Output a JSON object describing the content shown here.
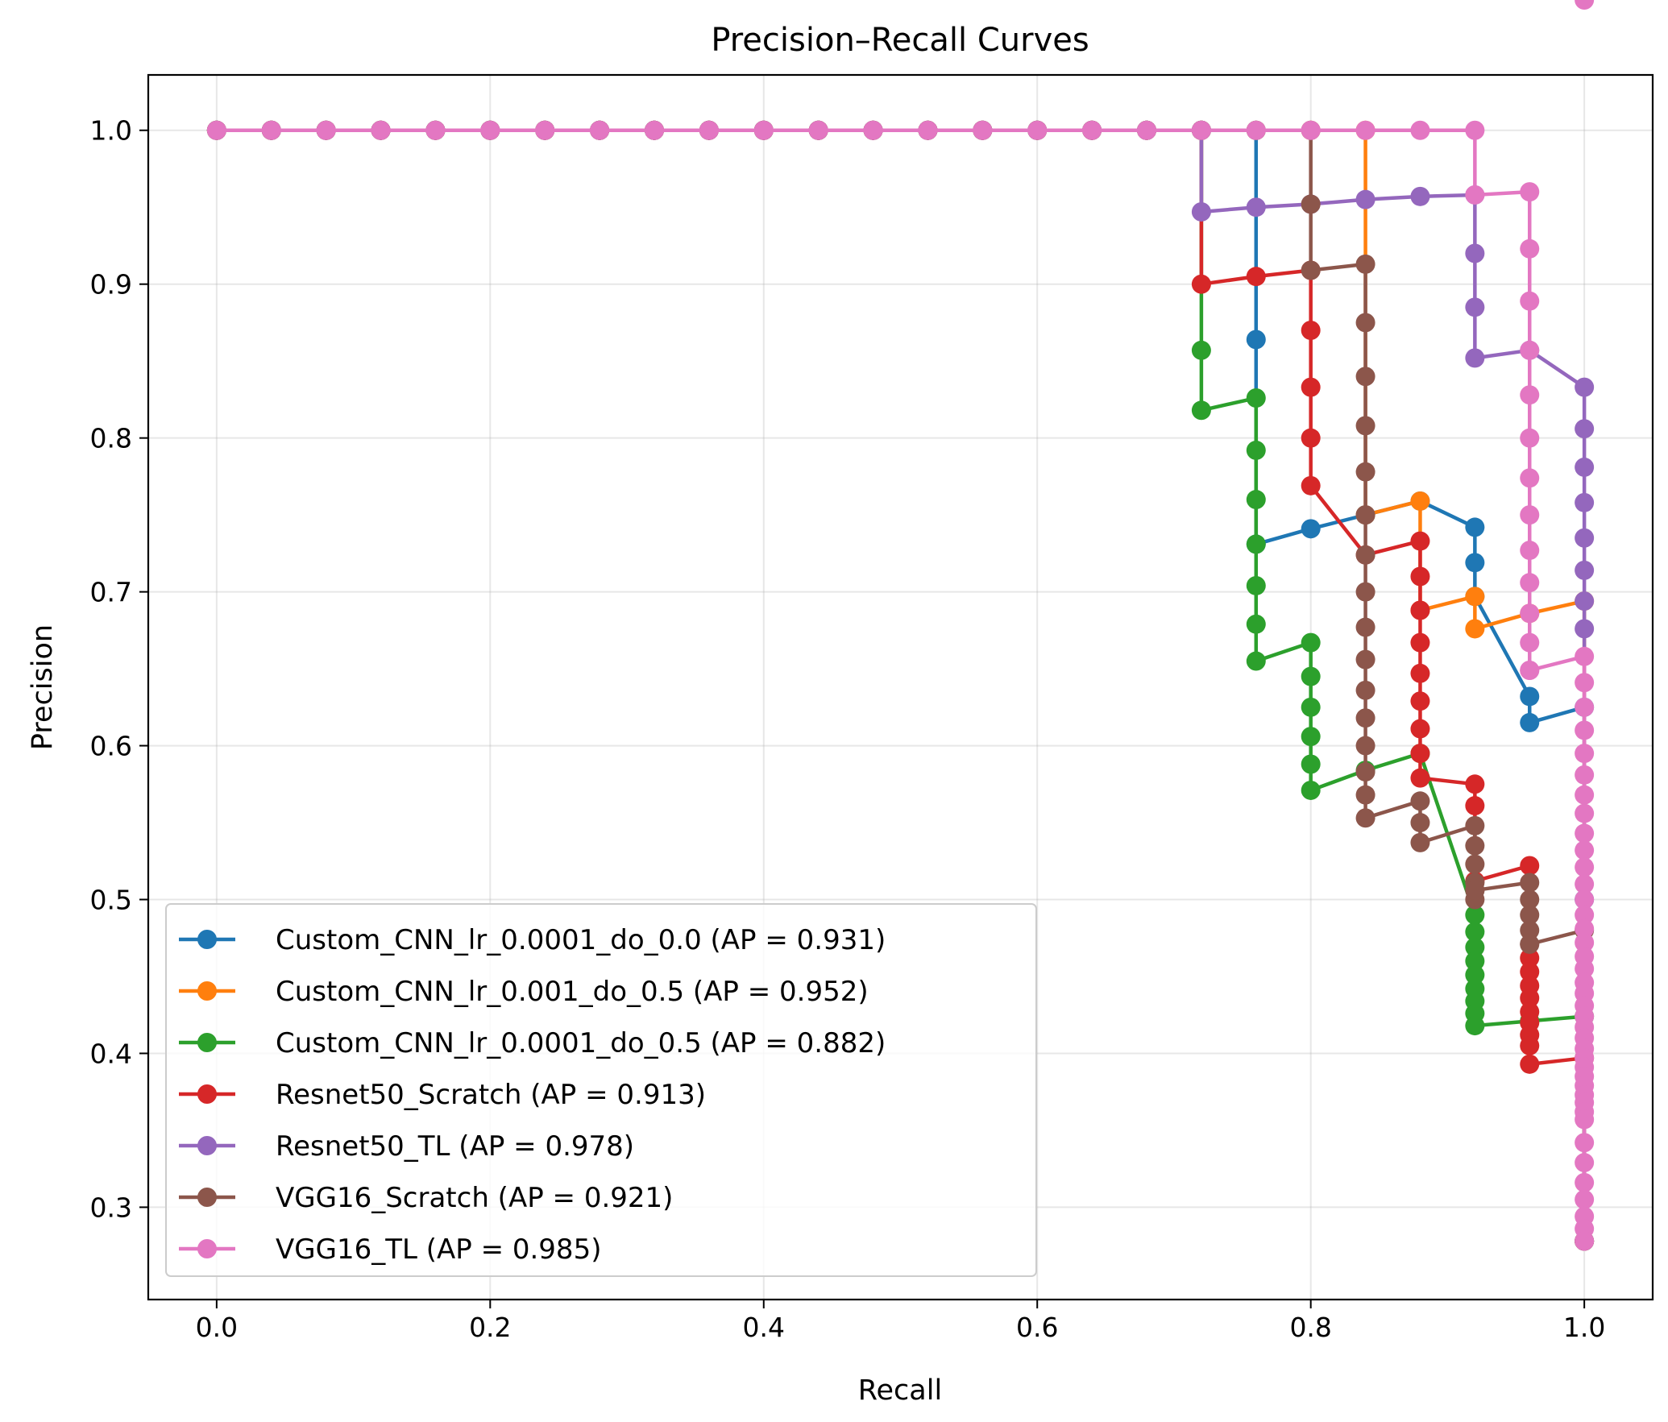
{
  "chart_data": {
    "type": "line",
    "title": "Precision–Recall Curves",
    "xlabel": "Recall",
    "ylabel": "Precision",
    "xlim": [
      -0.05,
      1.05
    ],
    "ylim": [
      0.24,
      1.036
    ],
    "xticks": [
      0.0,
      0.2,
      0.4,
      0.6,
      0.8,
      1.0
    ],
    "xtick_labels": [
      "0.0",
      "0.2",
      "0.4",
      "0.6",
      "0.8",
      "1.0"
    ],
    "yticks": [
      0.3,
      0.4,
      0.5,
      0.6,
      0.7,
      0.8,
      0.9,
      1.0
    ],
    "ytick_labels": [
      "0.3",
      "0.4",
      "0.5",
      "0.6",
      "0.7",
      "0.8",
      "0.9",
      "1.0"
    ],
    "grid": true,
    "legend_position": "lower-left",
    "series": [
      {
        "name": "Custom_CNN_lr_0.0001_do_0.0 (AP = 0.931)",
        "color": "#1f77b4",
        "recall": [
          0.0,
          0.04,
          0.08,
          0.12,
          0.16,
          0.2,
          0.24,
          0.28,
          0.32,
          0.36,
          0.4,
          0.44,
          0.48,
          0.52,
          0.56,
          0.6,
          0.64,
          0.68,
          0.72,
          0.76,
          0.76,
          0.76,
          0.8,
          0.84,
          0.88,
          0.92,
          0.92,
          0.92,
          0.96,
          0.96,
          1.0,
          1.0,
          1.0
        ],
        "precision": [
          1.0,
          1.0,
          1.0,
          1.0,
          1.0,
          1.0,
          1.0,
          1.0,
          1.0,
          1.0,
          1.0,
          1.0,
          1.0,
          1.0,
          1.0,
          1.0,
          1.0,
          1.0,
          1.0,
          1.0,
          0.864,
          0.731,
          0.741,
          0.75,
          0.759,
          0.742,
          0.719,
          0.697,
          0.632,
          0.615,
          0.625,
          0.5,
          0.278
        ]
      },
      {
        "name": "Custom_CNN_lr_0.001_do_0.5 (AP = 0.952)",
        "color": "#ff7f0e",
        "recall": [
          0.0,
          0.04,
          0.08,
          0.12,
          0.16,
          0.2,
          0.24,
          0.28,
          0.32,
          0.36,
          0.4,
          0.44,
          0.48,
          0.52,
          0.56,
          0.6,
          0.64,
          0.68,
          0.72,
          0.76,
          0.8,
          0.84,
          0.84,
          0.88,
          0.88,
          0.92,
          0.92,
          0.96,
          1.0,
          1.0
        ],
        "precision": [
          1.0,
          1.0,
          1.0,
          1.0,
          1.0,
          1.0,
          1.0,
          1.0,
          1.0,
          1.0,
          1.0,
          1.0,
          1.0,
          1.0,
          1.0,
          1.0,
          1.0,
          1.0,
          1.0,
          1.0,
          1.0,
          1.0,
          0.75,
          0.759,
          0.688,
          0.697,
          0.676,
          0.686,
          0.694,
          0.278
        ]
      },
      {
        "name": "Custom_CNN_lr_0.0001_do_0.5 (AP = 0.882)",
        "color": "#2ca02c",
        "recall": [
          0.0,
          0.04,
          0.08,
          0.12,
          0.16,
          0.2,
          0.24,
          0.28,
          0.32,
          0.36,
          0.4,
          0.44,
          0.48,
          0.52,
          0.56,
          0.6,
          0.64,
          0.68,
          0.72,
          0.72,
          0.72,
          0.76,
          0.76,
          0.76,
          0.76,
          0.76,
          0.76,
          0.76,
          0.8,
          0.8,
          0.8,
          0.8,
          0.8,
          0.8,
          0.84,
          0.88,
          0.92,
          0.92,
          0.92,
          0.92,
          0.92,
          0.92,
          0.92,
          0.92,
          0.92,
          0.96,
          1.0,
          1.0
        ],
        "precision": [
          1.0,
          1.0,
          1.0,
          1.0,
          1.0,
          1.0,
          1.0,
          1.0,
          1.0,
          1.0,
          1.0,
          1.0,
          1.0,
          1.0,
          1.0,
          1.0,
          1.0,
          1.0,
          1.0,
          0.857,
          0.818,
          0.826,
          0.792,
          0.76,
          0.731,
          0.704,
          0.679,
          0.655,
          0.667,
          0.645,
          0.625,
          0.606,
          0.588,
          0.571,
          0.584,
          0.595,
          0.49,
          0.479,
          0.469,
          0.46,
          0.451,
          0.442,
          0.434,
          0.426,
          0.418,
          0.421,
          0.424,
          0.278
        ]
      },
      {
        "name": "Resnet50_Scratch (AP = 0.913)",
        "color": "#d62728",
        "recall": [
          0.0,
          0.04,
          0.08,
          0.12,
          0.16,
          0.2,
          0.24,
          0.28,
          0.32,
          0.36,
          0.4,
          0.44,
          0.48,
          0.52,
          0.56,
          0.6,
          0.64,
          0.68,
          0.72,
          0.72,
          0.76,
          0.8,
          0.8,
          0.8,
          0.8,
          0.8,
          0.84,
          0.88,
          0.88,
          0.88,
          0.88,
          0.88,
          0.88,
          0.88,
          0.88,
          0.88,
          0.92,
          0.92,
          0.92,
          0.96,
          0.96,
          0.96,
          0.96,
          0.96,
          0.96,
          0.96,
          0.96,
          0.96,
          0.96,
          1.0,
          1.0
        ],
        "precision": [
          1.0,
          1.0,
          1.0,
          1.0,
          1.0,
          1.0,
          1.0,
          1.0,
          1.0,
          1.0,
          1.0,
          1.0,
          1.0,
          1.0,
          1.0,
          1.0,
          1.0,
          1.0,
          1.0,
          0.9,
          0.905,
          0.909,
          0.87,
          0.833,
          0.8,
          0.769,
          0.724,
          0.733,
          0.71,
          0.688,
          0.667,
          0.647,
          0.629,
          0.611,
          0.595,
          0.579,
          0.575,
          0.561,
          0.512,
          0.522,
          0.462,
          0.453,
          0.444,
          0.436,
          0.427,
          0.42,
          0.412,
          0.405,
          0.393,
          0.397,
          0.278
        ]
      },
      {
        "name": "Resnet50_TL (AP = 0.978)",
        "color": "#9467bd",
        "recall": [
          0.0,
          0.04,
          0.08,
          0.12,
          0.16,
          0.2,
          0.24,
          0.28,
          0.32,
          0.36,
          0.4,
          0.44,
          0.48,
          0.52,
          0.56,
          0.6,
          0.64,
          0.68,
          0.72,
          0.72,
          0.76,
          0.8,
          0.84,
          0.88,
          0.92,
          0.92,
          0.92,
          0.92,
          0.96,
          1.0,
          1.0,
          1.0,
          1.0,
          1.0,
          1.0,
          1.0,
          1.0,
          1.0
        ],
        "precision": [
          1.0,
          1.0,
          1.0,
          1.0,
          1.0,
          1.0,
          1.0,
          1.0,
          1.0,
          1.0,
          1.0,
          1.0,
          1.0,
          1.0,
          1.0,
          1.0,
          1.0,
          1.0,
          1.0,
          0.947,
          0.95,
          0.952,
          0.955,
          0.957,
          0.958,
          0.92,
          0.885,
          0.852,
          0.857,
          0.833,
          0.806,
          0.781,
          0.758,
          0.735,
          0.714,
          0.694,
          0.676,
          0.278
        ]
      },
      {
        "name": "VGG16_Scratch (AP = 0.921)",
        "color": "#8c564b",
        "recall": [
          0.0,
          0.04,
          0.08,
          0.12,
          0.16,
          0.2,
          0.24,
          0.28,
          0.32,
          0.36,
          0.4,
          0.44,
          0.48,
          0.52,
          0.56,
          0.6,
          0.64,
          0.68,
          0.72,
          0.76,
          0.8,
          0.8,
          0.8,
          0.84,
          0.84,
          0.84,
          0.84,
          0.84,
          0.84,
          0.84,
          0.84,
          0.84,
          0.84,
          0.84,
          0.84,
          0.84,
          0.84,
          0.84,
          0.84,
          0.88,
          0.88,
          0.88,
          0.92,
          0.92,
          0.92,
          0.92,
          0.92,
          0.92,
          0.92,
          0.96,
          0.96,
          0.96,
          0.96,
          0.96,
          0.96,
          1.0,
          1.0
        ],
        "precision": [
          1.0,
          1.0,
          1.0,
          1.0,
          1.0,
          1.0,
          1.0,
          1.0,
          1.0,
          1.0,
          1.0,
          1.0,
          1.0,
          1.0,
          1.0,
          1.0,
          1.0,
          1.0,
          1.0,
          1.0,
          1.0,
          0.952,
          0.909,
          0.913,
          0.875,
          0.84,
          0.808,
          0.778,
          0.75,
          0.724,
          0.7,
          0.677,
          0.656,
          0.636,
          0.618,
          0.6,
          0.583,
          0.568,
          0.553,
          0.564,
          0.55,
          0.537,
          0.548,
          0.535,
          0.523,
          0.511,
          0.5,
          0.506,
          0.506,
          0.511,
          0.5,
          0.49,
          0.48,
          0.471,
          0.471,
          0.48,
          0.278
        ]
      },
      {
        "name": "VGG16_TL (AP = 0.985)",
        "color": "#e377c2",
        "recall": [
          0.0,
          0.04,
          0.08,
          0.12,
          0.16,
          0.2,
          0.24,
          0.28,
          0.32,
          0.36,
          0.4,
          0.44,
          0.48,
          0.52,
          0.56,
          0.6,
          0.64,
          0.68,
          0.72,
          0.76,
          0.8,
          0.84,
          0.88,
          0.92,
          0.92,
          0.96,
          0.96,
          0.96,
          0.96,
          0.96,
          0.96,
          0.96,
          0.96,
          0.96,
          0.96,
          0.96,
          0.96,
          0.96,
          0.96,
          1.0,
          1.0,
          1.0,
          1.0,
          1.0,
          1.0,
          1.0,
          1.0,
          1.0,
          1.0,
          1.0,
          1.0,
          1.0,
          1.0,
          1.0,
          1.0,
          1.0,
          1.0,
          1.0,
          1.0,
          1.0,
          1.0,
          1.0,
          1.0,
          1.0,
          1.0,
          1.0,
          1.0,
          1.0,
          1.0,
          1.0,
          1.0,
          1.0,
          1.0,
          1.0,
          1.0,
          1.0,
          1.0,
          1.0,
          1.0,
          1.0
        ],
        "precision": [
          1.0,
          1.0,
          1.0,
          1.0,
          1.0,
          1.0,
          1.0,
          1.0,
          1.0,
          1.0,
          1.0,
          1.0,
          1.0,
          1.0,
          1.0,
          1.0,
          1.0,
          1.0,
          1.0,
          1.0,
          1.0,
          1.0,
          1.0,
          1.0,
          0.958,
          0.96,
          0.923,
          0.889,
          0.857,
          0.828,
          0.8,
          0.774,
          0.75,
          0.727,
          0.706,
          0.686,
          0.667,
          0.649,
          0.649,
          0.658,
          0.641,
          0.625,
          0.61,
          0.595,
          0.581,
          0.568,
          0.556,
          0.543,
          0.532,
          0.521,
          0.51,
          0.5,
          0.49,
          0.481,
          0.472,
          0.463,
          0.455,
          0.446,
          0.439,
          0.431,
          0.424,
          0.417,
          0.41,
          0.403,
          0.397,
          0.391,
          0.385,
          0.379,
          0.373,
          0.368,
          0.362,
          0.357,
          0.342,
          0.329,
          0.316,
          0.305,
          0.294,
          0.286,
          0.278
        ]
      }
    ]
  }
}
